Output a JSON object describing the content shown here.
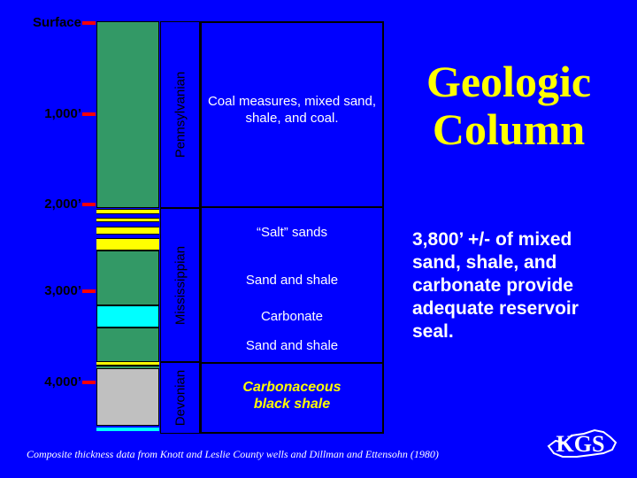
{
  "depth_labels": {
    "surface": "Surface",
    "d1000": "1,000’",
    "d2000": "2,000’",
    "d3000": "3,000’",
    "d4000": "4,000’"
  },
  "eras": {
    "pennsylvanian": "Pennsylvanian",
    "mississippian": "Mississippian",
    "devonian": "Devonian"
  },
  "descriptions": {
    "coal": "Coal measures, mixed sand, shale, and coal.",
    "salt_sands": "“Salt” sands",
    "sand_shale_1": "Sand and shale",
    "carbonate": "Carbonate",
    "sand_shale_2": "Sand and shale",
    "black_shale": "Carbonaceous black shale"
  },
  "title": {
    "line1": "Geologic",
    "line2": "Column"
  },
  "note": "3,800’ +/- of mixed sand, shale, and carbonate provide adequate reservoir seal.",
  "footer": "Composite thickness data from Knott and Leslie County wells and Dillman and Ettensohn (1980)",
  "logo_text": "KGS",
  "colors": {
    "background": "#0000ff",
    "coal_measures": "#339966",
    "sand": "#ffff00",
    "carbonate": "#00ffff",
    "black_shale": "#c0c0c0",
    "tick": "#ff0000",
    "title": "#ffff00"
  }
}
